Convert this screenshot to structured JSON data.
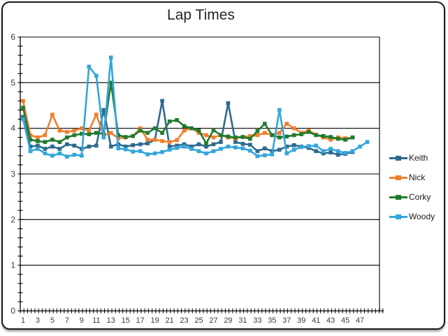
{
  "title": "Lap Times",
  "legend": [
    {
      "label": "Keith",
      "color": "#2d6b8d"
    },
    {
      "label": "Nick",
      "color": "#f0802c"
    },
    {
      "label": "Corky",
      "color": "#217b2f"
    },
    {
      "label": "Woody",
      "color": "#33a6dc"
    }
  ],
  "axes": {
    "y_ticks": [
      0,
      1,
      2,
      3,
      4,
      5,
      6
    ],
    "y_minor_step": 0.2,
    "x_labels": [
      "1",
      "3",
      "5",
      "7",
      "9",
      "11",
      "13",
      "15",
      "17",
      "19",
      "21",
      "23",
      "25",
      "27",
      "29",
      "31",
      "33",
      "35",
      "37",
      "39",
      "41",
      "43",
      "45",
      "47"
    ]
  },
  "chart_data": {
    "type": "line",
    "title": "Lap Times",
    "xlabel": "",
    "ylabel": "",
    "ylim": [
      0,
      6
    ],
    "xlim": [
      1,
      48
    ],
    "grid": "horizontal-major",
    "legend_position": "right",
    "marker": "square",
    "x_tick_labels_every": 2,
    "series": [
      {
        "name": "Keith",
        "color": "#2d6b8d",
        "values": [
          4.25,
          3.6,
          3.62,
          3.55,
          3.6,
          3.55,
          3.65,
          3.62,
          3.55,
          3.6,
          3.62,
          4.4,
          3.6,
          3.65,
          3.6,
          3.63,
          3.65,
          3.67,
          3.75,
          4.6,
          3.6,
          3.62,
          3.65,
          3.6,
          3.65,
          3.6,
          3.65,
          3.7,
          4.55,
          3.7,
          3.66,
          3.64,
          3.5,
          3.56,
          3.5,
          3.53,
          3.6,
          3.63,
          3.6,
          3.57,
          3.5,
          3.45,
          3.47,
          3.42,
          3.44,
          3.48
        ]
      },
      {
        "name": "Nick",
        "color": "#f0802c",
        "values": [
          4.6,
          3.85,
          3.8,
          3.85,
          4.3,
          3.95,
          3.92,
          3.95,
          4.0,
          3.95,
          4.3,
          3.85,
          3.9,
          3.78,
          3.8,
          3.83,
          4.0,
          3.75,
          3.75,
          3.72,
          3.7,
          3.74,
          3.95,
          4.0,
          3.9,
          3.85,
          3.8,
          3.85,
          3.8,
          3.78,
          3.81,
          3.83,
          3.85,
          3.9,
          3.85,
          3.9,
          4.1,
          4.0,
          3.9,
          3.95,
          3.86,
          3.8,
          3.75,
          3.8,
          3.78,
          3.8
        ]
      },
      {
        "name": "Corky",
        "color": "#217b2f",
        "values": [
          4.45,
          3.75,
          3.72,
          3.7,
          3.75,
          3.7,
          3.8,
          3.85,
          3.88,
          3.87,
          3.9,
          3.88,
          5.0,
          3.85,
          3.81,
          3.83,
          3.95,
          3.9,
          4.0,
          3.9,
          4.15,
          4.18,
          4.05,
          4.0,
          3.95,
          3.67,
          3.96,
          3.85,
          3.82,
          3.8,
          3.81,
          3.77,
          3.94,
          4.1,
          3.85,
          3.8,
          3.82,
          3.85,
          3.87,
          3.92,
          3.85,
          3.83,
          3.81,
          3.77,
          3.75,
          3.8
        ]
      },
      {
        "name": "Woody",
        "color": "#33a6dc",
        "values": [
          4.2,
          3.5,
          3.55,
          3.45,
          3.4,
          3.45,
          3.38,
          3.42,
          3.4,
          5.35,
          5.15,
          3.8,
          5.55,
          3.56,
          3.54,
          3.49,
          3.5,
          3.43,
          3.45,
          3.48,
          3.53,
          3.57,
          3.6,
          3.55,
          3.5,
          3.45,
          3.5,
          3.55,
          3.6,
          3.58,
          3.56,
          3.51,
          3.39,
          3.41,
          3.43,
          4.4,
          3.45,
          3.53,
          3.59,
          3.61,
          3.62,
          3.5,
          3.55,
          3.5,
          3.46,
          3.5,
          3.6,
          3.7
        ]
      }
    ]
  }
}
